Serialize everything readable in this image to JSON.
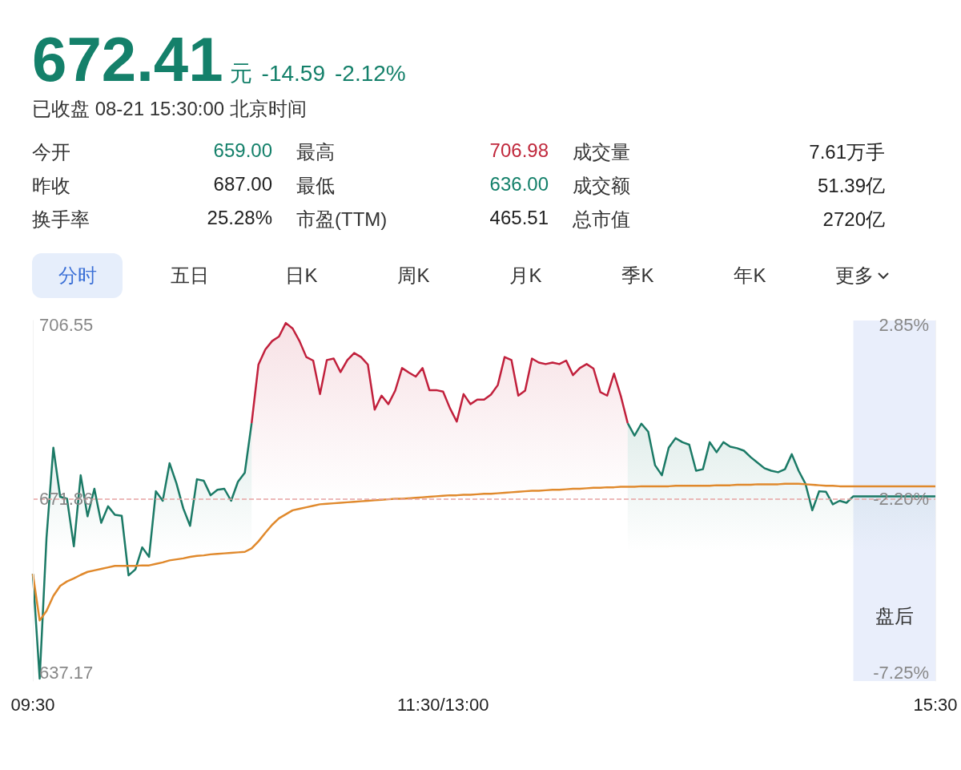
{
  "chart_data": [
    {
      "type": "other",
      "title": "672.41",
      "annotations": [
        "元",
        "-14.59",
        "-2.12%",
        "已收盘 08-21 15:30:00 北京时间",
        "今开",
        "659.00",
        "最高",
        "706.98",
        "成交量",
        "7.61万手",
        "昨收",
        "687.00",
        "最低",
        "636.00",
        "成交额",
        "51.39亿",
        "换手率",
        "25.28%",
        "市盈(TTM)",
        "465.51",
        "总市值",
        "2720亿",
        "分时",
        "五日",
        "日K",
        "周K",
        "月K",
        "季K",
        "年K",
        "更多"
      ]
    },
    {
      "type": "area",
      "categories": [
        "09:30",
        null,
        null,
        null,
        null,
        null,
        null,
        null,
        null,
        null,
        null,
        null,
        null,
        null,
        null,
        null,
        null,
        null,
        null,
        null,
        null,
        null,
        null,
        null,
        null,
        null,
        null,
        null,
        null,
        null,
        null,
        null,
        null,
        null,
        null,
        null,
        null,
        null,
        null,
        null,
        null,
        null,
        null,
        null,
        null,
        null,
        null,
        null,
        null,
        null,
        null,
        null,
        null,
        null,
        null,
        null,
        null,
        null,
        null,
        null,
        "11:30/13:00",
        null,
        null,
        null,
        null,
        null,
        null,
        null,
        null,
        null,
        null,
        null,
        null,
        null,
        null,
        null,
        null,
        null,
        null,
        null,
        null,
        null,
        null,
        null,
        null,
        null,
        null,
        null,
        null,
        null,
        null,
        null,
        null,
        null,
        null,
        null,
        null,
        null,
        null,
        null,
        null,
        null,
        null,
        null,
        null,
        null,
        null,
        null,
        null,
        null,
        null,
        null,
        null,
        null,
        null,
        null,
        null,
        null,
        null,
        null,
        null,
        null,
        null,
        null,
        null,
        null,
        null,
        null,
        null,
        null,
        null,
        null,
        "15:30"
      ],
      "ylim": [
        635.5,
        707.5
      ],
      "yticks": [
        706.55,
        671.86,
        637.17
      ],
      "y2lim": [
        -7.5,
        2.98
      ],
      "y2ticks": [
        {
          "value": 2.85,
          "label": "2.85%"
        },
        {
          "value": -2.2,
          "label": "-2.20%"
        },
        {
          "value": -7.25,
          "label": "-7.25%"
        }
      ],
      "grid": false,
      "marker": "none",
      "ref_lines": [
        {
          "axis": "y",
          "value": 671.86,
          "color": "#e6a3a3",
          "line_style": "dashed"
        }
      ],
      "annotations": [
        "盘后"
      ],
      "series": [
        {
          "color": "#1b7a66",
          "values": [
            656.9,
            636.0,
            664.1,
            682.1,
            672.3,
            671.9,
            662.4,
            676.6,
            668.4,
            673.9,
            667.1,
            670.4,
            668.7,
            668.5,
            656.6,
            657.8,
            662.2,
            660.3,
            673.4,
            671.5,
            679.0,
            675.0,
            670.0,
            666.5,
            675.8,
            675.5,
            672.6,
            673.7,
            673.9,
            671.5,
            675.3,
            677.1,
            687.0,
            null,
            null,
            null,
            null,
            null,
            null,
            null,
            null,
            null,
            null,
            null,
            null,
            null,
            null,
            null,
            null,
            null,
            null,
            null,
            null,
            null,
            null,
            null,
            null,
            null,
            null,
            null,
            null,
            null,
            null,
            null,
            null,
            null,
            null,
            null,
            null,
            null,
            null,
            null,
            null,
            null,
            null,
            null,
            null,
            null,
            null,
            null,
            null,
            null,
            null,
            null,
            null,
            null,
            null,
            687.0,
            684.5,
            686.9,
            685.3,
            678.6,
            676.6,
            682.1,
            684.0,
            683.2,
            682.7,
            677.5,
            677.8,
            683.2,
            681.2,
            683.2,
            682.3,
            682.0,
            681.5,
            680.2,
            679.1,
            678.0,
            677.5,
            677.2,
            677.8,
            680.8,
            677.5,
            674.9,
            669.6,
            673.4,
            673.3,
            670.8,
            671.5,
            671.1,
            672.4,
            672.4,
            672.4,
            672.4,
            672.4,
            672.4,
            672.4,
            672.4,
            672.4,
            672.4,
            672.4,
            672.4,
            672.4
          ]
        },
        {
          "color": "#c1203c",
          "values": [
            null,
            null,
            null,
            null,
            null,
            null,
            null,
            null,
            null,
            null,
            null,
            null,
            null,
            null,
            null,
            null,
            null,
            null,
            null,
            null,
            null,
            null,
            null,
            null,
            null,
            null,
            null,
            null,
            null,
            null,
            null,
            null,
            687.0,
            698.7,
            701.7,
            703.4,
            704.3,
            707.0,
            705.9,
            703.4,
            700.2,
            699.5,
            692.8,
            699.6,
            699.9,
            697.2,
            699.6,
            701.0,
            700.2,
            698.7,
            689.7,
            692.5,
            690.8,
            693.5,
            698.0,
            697.1,
            696.3,
            698.0,
            693.6,
            693.6,
            693.3,
            690.0,
            687.3,
            692.8,
            690.8,
            691.7,
            691.7,
            692.7,
            694.6,
            700.2,
            699.6,
            692.5,
            693.5,
            699.9,
            699.1,
            698.8,
            699.1,
            698.8,
            699.5,
            696.6,
            698.0,
            698.8,
            697.9,
            693.2,
            692.5,
            696.9,
            692.4,
            687.0,
            null,
            null,
            null,
            null,
            null,
            null,
            null,
            null,
            null,
            null,
            null,
            null,
            null,
            null,
            null,
            null,
            null,
            null,
            null,
            null,
            null,
            null,
            null,
            null,
            null,
            null,
            null,
            null,
            null,
            null,
            null,
            null,
            null,
            null,
            null,
            null,
            null,
            null,
            null,
            null,
            null,
            null,
            null,
            null,
            null
          ]
        },
        {
          "type": "line",
          "color": "#e0892c",
          "values": [
            656.9,
            647.6,
            649.5,
            652.5,
            654.5,
            655.4,
            656.0,
            656.7,
            657.3,
            657.6,
            657.9,
            658.2,
            658.5,
            658.5,
            658.5,
            658.5,
            658.6,
            658.6,
            658.9,
            659.2,
            659.6,
            659.8,
            660.0,
            660.3,
            660.5,
            660.6,
            660.8,
            660.9,
            661.0,
            661.1,
            661.2,
            661.3,
            662.0,
            663.4,
            665.1,
            666.7,
            668.0,
            668.8,
            669.6,
            669.9,
            670.2,
            670.5,
            670.8,
            670.9,
            671.0,
            671.1,
            671.2,
            671.3,
            671.4,
            671.5,
            671.6,
            671.7,
            671.8,
            671.9,
            671.9,
            672.0,
            672.1,
            672.2,
            672.3,
            672.4,
            672.5,
            672.6,
            672.6,
            672.7,
            672.7,
            672.8,
            672.9,
            672.9,
            673.0,
            673.1,
            673.2,
            673.3,
            673.4,
            673.5,
            673.5,
            673.6,
            673.7,
            673.7,
            673.8,
            673.9,
            673.9,
            674.0,
            674.1,
            674.1,
            674.2,
            674.2,
            674.3,
            674.3,
            674.3,
            674.4,
            674.4,
            674.4,
            674.4,
            674.4,
            674.5,
            674.5,
            674.5,
            674.5,
            674.5,
            674.5,
            674.6,
            674.6,
            674.6,
            674.7,
            674.7,
            674.7,
            674.8,
            674.8,
            674.8,
            674.8,
            674.9,
            674.9,
            674.9,
            674.8,
            674.7,
            674.6,
            674.5,
            674.5,
            674.4,
            674.4,
            674.4,
            674.4,
            674.4,
            674.4,
            674.4,
            674.4,
            674.4,
            674.4,
            674.4,
            674.4,
            674.4,
            674.4,
            674.4
          ]
        }
      ]
    }
  ]
}
